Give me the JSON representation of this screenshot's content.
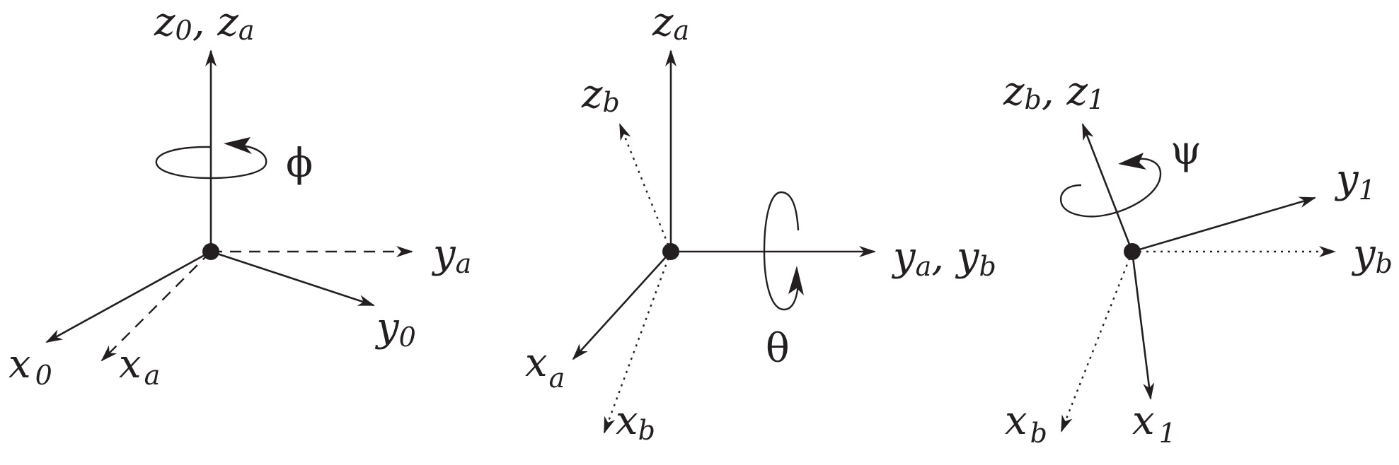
{
  "panels": [
    {
      "id": "phi",
      "rotation_symbol": "ϕ",
      "labels": {
        "z_top": {
          "main1": "z",
          "sub1": "0",
          "sep": ", ",
          "main2": "z",
          "sub2": "a"
        },
        "y_a": {
          "main": "y",
          "sub": "a"
        },
        "y_0": {
          "main": "y",
          "sub": "0"
        },
        "x_0": {
          "main": "x",
          "sub": "0"
        },
        "x_a": {
          "main": "x",
          "sub": "a"
        }
      }
    },
    {
      "id": "theta",
      "rotation_symbol": "θ",
      "labels": {
        "z_a": {
          "main": "z",
          "sub": "a"
        },
        "z_b": {
          "main": "z",
          "sub": "b"
        },
        "y_ab": {
          "main1": "y",
          "sub1": "a",
          "sep": ", ",
          "main2": "y",
          "sub2": "b"
        },
        "x_a": {
          "main": "x",
          "sub": "a"
        },
        "x_b": {
          "main": "x",
          "sub": "b"
        }
      }
    },
    {
      "id": "psi",
      "rotation_symbol": "ψ",
      "labels": {
        "z_b1": {
          "main1": "z",
          "sub1": "b",
          "sep": ", ",
          "main2": "z",
          "sub2": "1"
        },
        "y_1": {
          "main": "y",
          "sub": "1"
        },
        "y_b": {
          "main": "y",
          "sub": "b"
        },
        "x_b": {
          "main": "x",
          "sub": "b"
        },
        "x_1": {
          "main": "x",
          "sub": "1"
        }
      }
    }
  ]
}
